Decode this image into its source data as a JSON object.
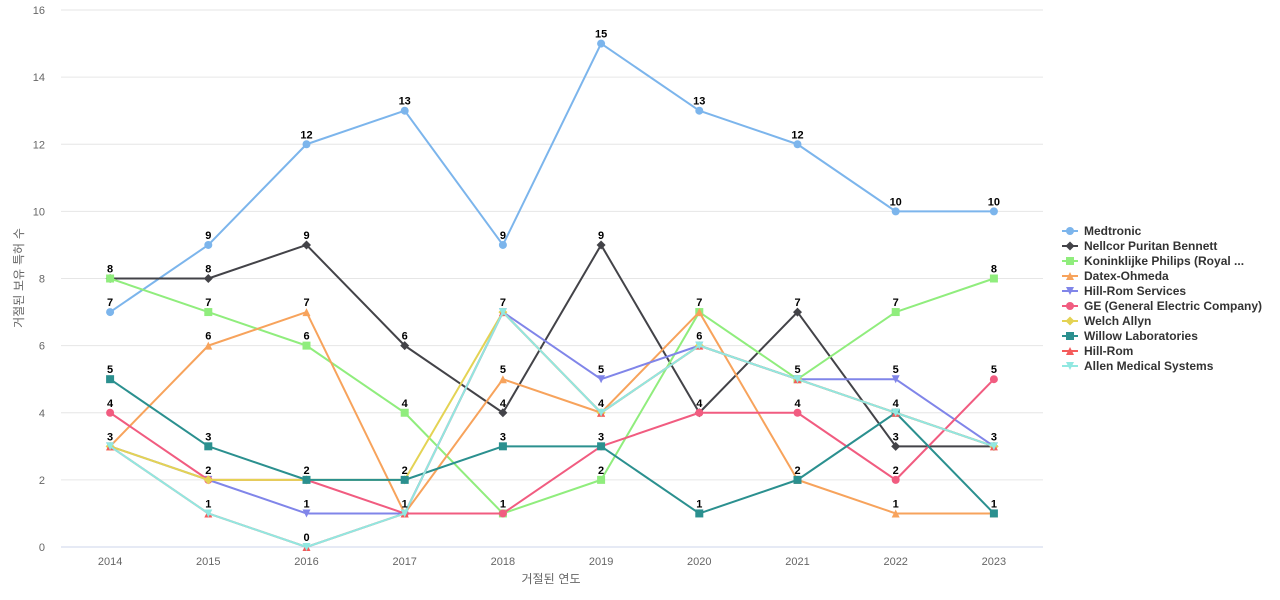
{
  "chart_data": {
    "type": "line",
    "title": "",
    "xlabel": "거절된 연도",
    "ylabel": "거절된 보유 특허 수",
    "x": [
      "2014",
      "2015",
      "2016",
      "2017",
      "2018",
      "2019",
      "2020",
      "2021",
      "2022",
      "2023"
    ],
    "ylim": [
      0,
      16
    ],
    "yticks": [
      0,
      2,
      4,
      6,
      8,
      10,
      12,
      14,
      16
    ],
    "grid": true,
    "legend_position": "right",
    "series": [
      {
        "name": "Medtronic",
        "color": "#7cb5ec",
        "marker": "circle",
        "values": [
          7,
          9,
          12,
          13,
          9,
          15,
          13,
          12,
          10,
          10
        ]
      },
      {
        "name": "Nellcor Puritan Bennett",
        "color": "#434348",
        "marker": "diamond",
        "values": [
          8,
          8,
          9,
          6,
          4,
          9,
          4,
          7,
          3,
          3
        ]
      },
      {
        "name": "Koninklijke Philips (Royal ...",
        "color": "#90ed7d",
        "marker": "square",
        "values": [
          8,
          7,
          6,
          4,
          1,
          2,
          7,
          5,
          7,
          8
        ]
      },
      {
        "name": "Datex-Ohmeda",
        "color": "#f7a35c",
        "marker": "triangle",
        "values": [
          3,
          6,
          7,
          1,
          5,
          4,
          7,
          2,
          1,
          1
        ]
      },
      {
        "name": "Hill-Rom Services",
        "color": "#8085e9",
        "marker": "triangle-down",
        "values": [
          3,
          2,
          1,
          1,
          7,
          5,
          6,
          5,
          5,
          3
        ]
      },
      {
        "name": "GE (General Electric Company)",
        "color": "#f15c80",
        "marker": "circle",
        "values": [
          4,
          2,
          2,
          1,
          1,
          3,
          4,
          4,
          2,
          5
        ]
      },
      {
        "name": "Welch Allyn",
        "color": "#e4d354",
        "marker": "diamond",
        "values": [
          3,
          2,
          2,
          2,
          7,
          4,
          6,
          5,
          4,
          3
        ]
      },
      {
        "name": "Willow Laboratories",
        "color": "#2b908f",
        "marker": "square",
        "values": [
          5,
          3,
          2,
          2,
          3,
          3,
          1,
          2,
          4,
          1
        ]
      },
      {
        "name": "Hill-Rom",
        "color": "#f45b5b",
        "marker": "triangle",
        "values": [
          3,
          1,
          0,
          1,
          7,
          4,
          6,
          5,
          4,
          3
        ]
      },
      {
        "name": "Allen Medical Systems",
        "color": "#91e8e1",
        "marker": "triangle-down",
        "values": [
          3,
          1,
          0,
          1,
          7,
          4,
          6,
          5,
          4,
          3
        ]
      }
    ],
    "data_labels": [
      {
        "x": "2014",
        "value": "8"
      },
      {
        "x": "2014",
        "value": "7"
      },
      {
        "x": "2014",
        "value": "5"
      },
      {
        "x": "2014",
        "value": "4"
      },
      {
        "x": "2014",
        "value": "3"
      },
      {
        "x": "2015",
        "value": "9"
      },
      {
        "x": "2015",
        "value": "8"
      },
      {
        "x": "2015",
        "value": "7"
      },
      {
        "x": "2015",
        "value": "6"
      },
      {
        "x": "2015",
        "value": "3"
      },
      {
        "x": "2015",
        "value": "2"
      },
      {
        "x": "2015",
        "value": "1"
      },
      {
        "x": "2016",
        "value": "12"
      },
      {
        "x": "2016",
        "value": "9"
      },
      {
        "x": "2016",
        "value": "7"
      },
      {
        "x": "2016",
        "value": "6"
      },
      {
        "x": "2016",
        "value": "2"
      },
      {
        "x": "2016",
        "value": "1"
      },
      {
        "x": "2016",
        "value": "0"
      },
      {
        "x": "2017",
        "value": "13"
      },
      {
        "x": "2017",
        "value": "6"
      },
      {
        "x": "2017",
        "value": "4"
      },
      {
        "x": "2017",
        "value": "2"
      },
      {
        "x": "2017",
        "value": "1"
      },
      {
        "x": "2018",
        "value": "9"
      },
      {
        "x": "2018",
        "value": "7"
      },
      {
        "x": "2018",
        "value": "5"
      },
      {
        "x": "2018",
        "value": "4"
      },
      {
        "x": "2018",
        "value": "3"
      },
      {
        "x": "2018",
        "value": "1"
      },
      {
        "x": "2019",
        "value": "15"
      },
      {
        "x": "2019",
        "value": "9"
      },
      {
        "x": "2019",
        "value": "5"
      },
      {
        "x": "2019",
        "value": "4"
      },
      {
        "x": "2019",
        "value": "3"
      },
      {
        "x": "2019",
        "value": "2"
      },
      {
        "x": "2020",
        "value": "13"
      },
      {
        "x": "2020",
        "value": "7"
      },
      {
        "x": "2020",
        "value": "6"
      },
      {
        "x": "2020",
        "value": "4"
      },
      {
        "x": "2020",
        "value": "1"
      },
      {
        "x": "2021",
        "value": "12"
      },
      {
        "x": "2021",
        "value": "7"
      },
      {
        "x": "2021",
        "value": "5"
      },
      {
        "x": "2021",
        "value": "4"
      },
      {
        "x": "2021",
        "value": "2"
      },
      {
        "x": "2022",
        "value": "10"
      },
      {
        "x": "2022",
        "value": "7"
      },
      {
        "x": "2022",
        "value": "5"
      },
      {
        "x": "2022",
        "value": "4"
      },
      {
        "x": "2022",
        "value": "3"
      },
      {
        "x": "2022",
        "value": "2"
      },
      {
        "x": "2022",
        "value": "1"
      },
      {
        "x": "2023",
        "value": "10"
      },
      {
        "x": "2023",
        "value": "8"
      },
      {
        "x": "2023",
        "value": "5"
      },
      {
        "x": "2023",
        "value": "3"
      },
      {
        "x": "2023",
        "value": "1"
      }
    ]
  }
}
